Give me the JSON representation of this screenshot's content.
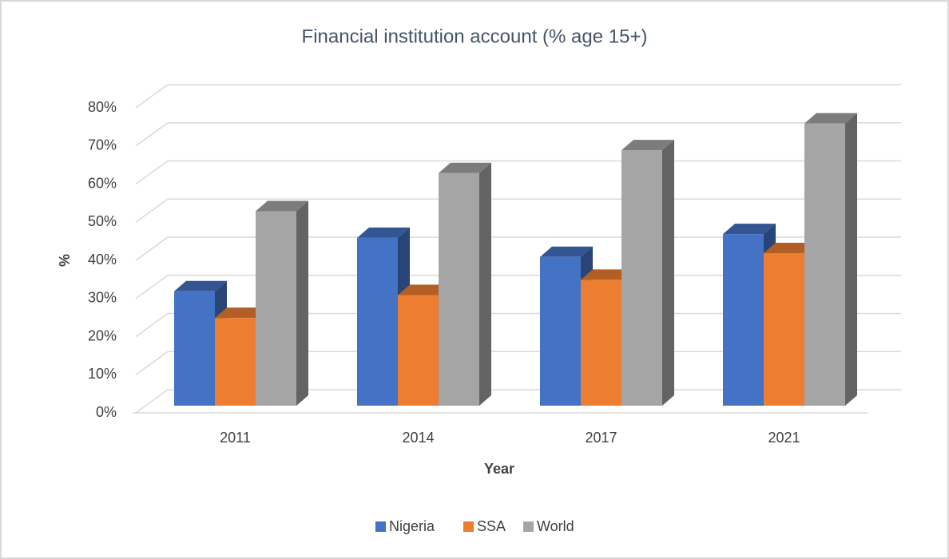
{
  "chart_data": {
    "type": "bar3d",
    "title": "Financial  institution account (% age 15+)",
    "x_label": "Year",
    "y_label": "%",
    "categories": [
      "2011",
      "2014",
      "2017",
      "2021"
    ],
    "series": [
      {
        "name": "Nigeria",
        "color": "#4472c4",
        "values": [
          30,
          44,
          39,
          45
        ]
      },
      {
        "name": "SSA",
        "color": "#ed7d31",
        "values": [
          23,
          29,
          33,
          40
        ]
      },
      {
        "name": "World",
        "color": "#a5a5a5",
        "values": [
          51,
          61,
          67,
          74
        ]
      }
    ],
    "ylim": [
      0,
      80
    ],
    "yticks": [
      {
        "value": 0,
        "label": "0%"
      },
      {
        "value": 10,
        "label": "10%"
      },
      {
        "value": 20,
        "label": "20%"
      },
      {
        "value": 30,
        "label": "30%"
      },
      {
        "value": 40,
        "label": "40%"
      },
      {
        "value": 50,
        "label": "50%"
      },
      {
        "value": 60,
        "label": "60%"
      },
      {
        "value": 70,
        "label": "70%"
      },
      {
        "value": 80,
        "label": "80%"
      }
    ],
    "grid": true,
    "legend": "bottom"
  }
}
